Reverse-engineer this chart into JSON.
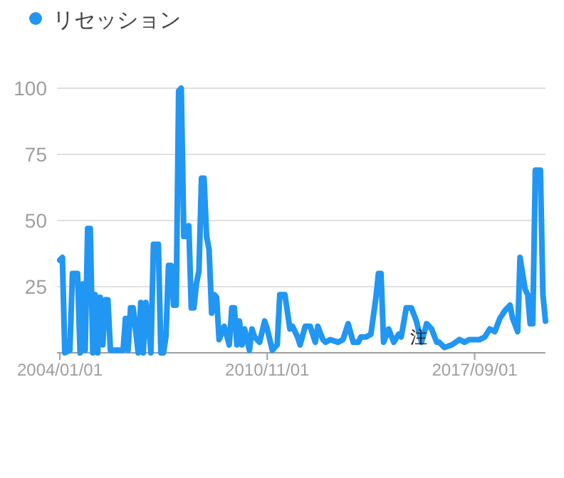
{
  "chart_data": {
    "type": "line",
    "x": [
      "2004-01",
      "2004-02",
      "2004-03",
      "2004-05",
      "2004-06",
      "2004-08",
      "2004-09",
      "2004-10",
      "2004-11",
      "2004-12",
      "2005-01",
      "2005-02",
      "2005-03",
      "2005-04",
      "2005-05",
      "2005-06",
      "2005-07",
      "2005-08",
      "2005-09",
      "2005-10",
      "2006-02",
      "2006-03",
      "2006-04",
      "2006-05",
      "2006-06",
      "2006-08",
      "2006-09",
      "2006-10",
      "2006-11",
      "2006-12",
      "2007-01",
      "2007-02",
      "2007-04",
      "2007-05",
      "2007-06",
      "2007-07",
      "2007-08",
      "2007-09",
      "2007-10",
      "2007-11",
      "2007-12",
      "2008-01",
      "2008-02",
      "2008-03",
      "2008-04",
      "2008-05",
      "2008-06",
      "2008-07",
      "2008-08",
      "2008-09",
      "2008-10",
      "2008-11",
      "2008-12",
      "2009-01",
      "2009-02",
      "2009-03",
      "2009-04",
      "2009-06",
      "2009-08",
      "2009-09",
      "2009-10",
      "2009-11",
      "2009-12",
      "2010-01",
      "2010-02",
      "2010-04",
      "2010-05",
      "2010-06",
      "2010-08",
      "2010-10",
      "2010-11",
      "2011-01",
      "2011-03",
      "2011-04",
      "2011-06",
      "2011-08",
      "2011-09",
      "2011-11",
      "2011-12",
      "2012-02",
      "2012-04",
      "2012-06",
      "2012-07",
      "2012-09",
      "2012-10",
      "2012-12",
      "2013-03",
      "2013-05",
      "2013-07",
      "2013-09",
      "2013-11",
      "2013-12",
      "2014-02",
      "2014-04",
      "2014-06",
      "2014-07",
      "2014-08",
      "2014-09",
      "2014-11",
      "2015-01",
      "2015-03",
      "2015-04",
      "2015-06",
      "2015-08",
      "2015-10",
      "2015-12",
      "2016-02",
      "2016-04",
      "2016-06",
      "2016-07",
      "2016-09",
      "2016-12",
      "2017-03",
      "2017-05",
      "2017-07",
      "2017-10",
      "2017-11",
      "2018-01",
      "2018-03",
      "2018-05",
      "2018-07",
      "2018-09",
      "2018-11",
      "2018-12",
      "2019-02",
      "2019-03",
      "2019-05",
      "2019-06",
      "2019-07",
      "2019-08",
      "2019-09",
      "2019-11",
      "2019-12",
      "2020-01"
    ],
    "series": [
      {
        "name": "リセッション",
        "color": "#2196f3",
        "values": [
          35,
          36,
          0,
          1,
          30,
          30,
          0,
          26,
          1,
          47,
          47,
          0,
          22,
          0,
          21,
          3,
          20,
          20,
          1,
          1,
          1,
          13,
          1,
          17,
          17,
          0,
          19,
          0,
          19,
          13,
          0,
          41,
          41,
          0,
          0,
          6,
          33,
          33,
          18,
          18,
          99,
          100,
          44,
          44,
          48,
          17,
          17,
          26,
          31,
          66,
          66,
          44,
          39,
          15,
          22,
          21,
          5,
          10,
          3,
          17,
          17,
          3,
          12,
          3,
          9,
          1,
          9,
          6,
          4,
          12,
          9,
          1,
          3,
          22,
          22,
          9,
          10,
          6,
          3,
          10,
          10,
          4,
          10,
          5,
          4,
          5,
          4,
          5,
          11,
          4,
          4,
          6,
          6,
          7,
          21,
          30,
          30,
          4,
          9,
          4,
          7,
          6,
          17,
          17,
          12,
          4,
          11,
          9,
          4,
          4,
          2,
          3,
          5,
          4,
          5,
          5,
          5,
          6,
          9,
          8,
          13,
          16,
          18,
          13,
          8,
          36,
          24,
          22,
          11,
          11,
          69,
          69,
          22,
          12
        ]
      }
    ],
    "xlim": [
      "2004-01",
      "2020-01"
    ],
    "xticks": [
      {
        "value": "2004-01-01",
        "label": "2004/01/01"
      },
      {
        "value": "2010-11-01",
        "label": "2010/11/01"
      },
      {
        "value": "2017-09-01",
        "label": "2017/09/01"
      }
    ],
    "ylim": [
      0,
      100
    ],
    "yticks": [
      25,
      50,
      75,
      100
    ],
    "grid": "y",
    "legend": "top left",
    "annotations": [
      {
        "text": "注",
        "x": "2015-11",
        "y": 6
      }
    ]
  }
}
